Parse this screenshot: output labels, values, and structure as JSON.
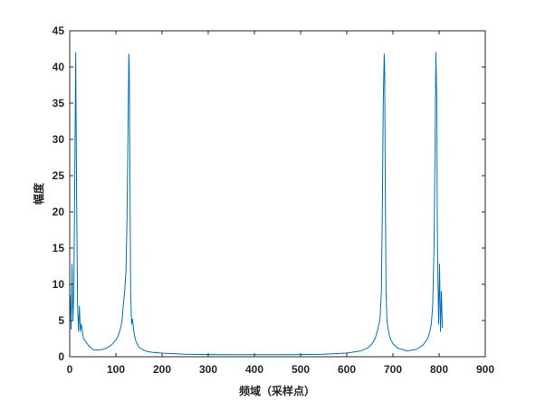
{
  "chart_data": {
    "type": "line",
    "xlabel": "频域（采样点）",
    "ylabel": "幅度",
    "xlim": [
      0,
      900
    ],
    "ylim": [
      0,
      45
    ],
    "x_ticks": [
      0,
      100,
      200,
      300,
      400,
      500,
      600,
      700,
      800,
      900
    ],
    "y_ticks": [
      0,
      5,
      10,
      15,
      20,
      25,
      30,
      35,
      40,
      45
    ],
    "grid": false,
    "line_color": "#0072BD",
    "x": [
      1,
      3,
      5,
      7,
      9,
      11,
      13,
      15,
      17,
      19,
      21,
      23,
      25,
      30,
      40,
      50,
      60,
      70,
      80,
      90,
      100,
      105,
      110,
      113,
      116,
      119,
      122,
      124,
      126,
      128,
      129,
      130,
      132,
      134,
      136,
      138,
      140,
      143,
      146,
      150,
      160,
      170,
      180,
      200,
      250,
      300,
      350,
      400,
      450,
      500,
      550,
      600,
      630,
      645,
      655,
      662,
      668,
      672,
      675,
      677,
      679,
      681,
      682,
      683,
      685,
      687,
      689,
      692,
      695,
      700,
      710,
      730,
      750,
      765,
      775,
      780,
      783,
      786,
      789,
      791,
      793,
      795,
      796,
      797,
      799,
      801,
      803,
      805,
      807
    ],
    "y": [
      8.5,
      3.8,
      12.8,
      5.0,
      9.0,
      25.0,
      42.0,
      22.0,
      7.0,
      3.5,
      7.0,
      3.5,
      4.5,
      2.5,
      1.6,
      1.0,
      0.9,
      1.0,
      1.2,
      1.6,
      2.3,
      2.9,
      3.9,
      4.8,
      7.0,
      9.0,
      12.0,
      19.0,
      30.0,
      41.8,
      40.0,
      30.0,
      9.0,
      4.5,
      5.2,
      4.0,
      3.0,
      2.2,
      1.8,
      1.3,
      0.9,
      0.7,
      0.6,
      0.5,
      0.35,
      0.3,
      0.28,
      0.28,
      0.28,
      0.3,
      0.35,
      0.5,
      0.8,
      1.2,
      1.8,
      2.6,
      4.0,
      5.2,
      9.0,
      20.0,
      35.0,
      41.8,
      40.0,
      28.0,
      9.0,
      5.0,
      4.0,
      3.0,
      2.4,
      1.8,
      1.2,
      0.8,
      1.0,
      1.6,
      2.5,
      3.5,
      4.5,
      7.0,
      15.0,
      28.0,
      42.0,
      35.0,
      20.0,
      12.5,
      4.5,
      12.8,
      3.5,
      9.0,
      4.0
    ]
  }
}
